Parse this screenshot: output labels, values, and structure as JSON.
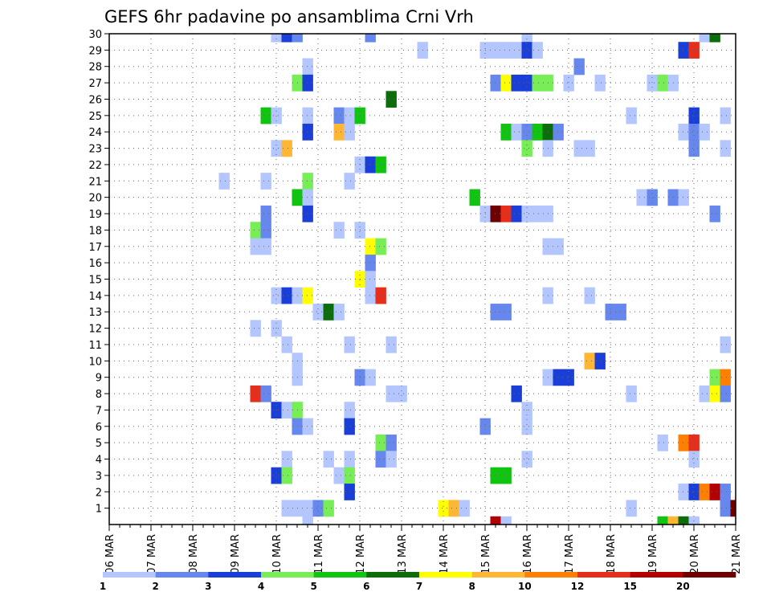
{
  "chart_data": {
    "type": "heatmap",
    "title": "GEFS 6hr padavine po ansamblima Crni Vrh",
    "xlabel": "",
    "ylabel": "",
    "x_range": [
      "06 MAR 00Z",
      "21 MAR 00Z"
    ],
    "y_range": [
      0,
      30
    ],
    "x_tick_labels": [
      "06 MAR",
      "07 MAR",
      "08 MAR",
      "09 MAR",
      "10 MAR",
      "11 MAR",
      "12 MAR",
      "13 MAR",
      "14 MAR",
      "15 MAR",
      "16 MAR",
      "17 MAR",
      "18 MAR",
      "19 MAR",
      "20 MAR",
      "21 MAR"
    ],
    "y_tick_labels": [
      "1",
      "2",
      "3",
      "4",
      "5",
      "6",
      "7",
      "8",
      "9",
      "10",
      "11",
      "12",
      "13",
      "14",
      "15",
      "16",
      "17",
      "18",
      "19",
      "20",
      "21",
      "22",
      "23",
      "24",
      "25",
      "26",
      "27",
      "28",
      "29",
      "30"
    ],
    "grid": true,
    "legend_position": "bottom",
    "colorbar": {
      "levels": [
        1,
        2,
        3,
        4,
        5,
        6,
        7,
        8,
        10,
        12,
        15,
        20
      ],
      "labels": [
        "1",
        "2",
        "3",
        "4",
        "5",
        "6",
        "7",
        "8",
        "10",
        "12",
        "15",
        "20"
      ],
      "colors": [
        "#b3c6ff",
        "#6688ee",
        "#1a3fd9",
        "#77ee55",
        "#11c411",
        "#0b6e0b",
        "#ffff00",
        "#ffb733",
        "#ff8000",
        "#e62e1a",
        "#b30000",
        "#6e0000"
      ]
    },
    "cells": [
      {
        "member": 30,
        "t": "10 MAR 00Z",
        "c": 0
      },
      {
        "member": 30,
        "t": "10 MAR 06Z",
        "c": 2
      },
      {
        "member": 30,
        "t": "10 MAR 12Z",
        "c": 1
      },
      {
        "member": 30,
        "t": "12 MAR 06Z",
        "c": 1
      },
      {
        "member": 30,
        "t": "16 MAR 00Z",
        "c": 0
      },
      {
        "member": 30,
        "t": "20 MAR 06Z",
        "c": 0
      },
      {
        "member": 30,
        "t": "20 MAR 12Z",
        "c": 5
      },
      {
        "member": 29,
        "t": "13 MAR 12Z",
        "c": 0
      },
      {
        "member": 29,
        "t": "15 MAR 00Z",
        "c": 0
      },
      {
        "member": 29,
        "t": "15 MAR 06Z",
        "c": 0
      },
      {
        "member": 29,
        "t": "15 MAR 12Z",
        "c": 0
      },
      {
        "member": 29,
        "t": "15 MAR 18Z",
        "c": 0
      },
      {
        "member": 29,
        "t": "16 MAR 00Z",
        "c": 2
      },
      {
        "member": 29,
        "t": "16 MAR 06Z",
        "c": 0
      },
      {
        "member": 29,
        "t": "19 MAR 18Z",
        "c": 2
      },
      {
        "member": 29,
        "t": "20 MAR 00Z",
        "c": 9
      },
      {
        "member": 28,
        "t": "10 MAR 18Z",
        "c": 0
      },
      {
        "member": 28,
        "t": "17 MAR 06Z",
        "c": 1
      },
      {
        "member": 27,
        "t": "10 MAR 12Z",
        "c": 3
      },
      {
        "member": 27,
        "t": "10 MAR 18Z",
        "c": 2
      },
      {
        "member": 27,
        "t": "15 MAR 06Z",
        "c": 1
      },
      {
        "member": 27,
        "t": "15 MAR 12Z",
        "c": 6
      },
      {
        "member": 27,
        "t": "15 MAR 18Z",
        "c": 2
      },
      {
        "member": 27,
        "t": "16 MAR 00Z",
        "c": 2
      },
      {
        "member": 27,
        "t": "16 MAR 06Z",
        "c": 3
      },
      {
        "member": 27,
        "t": "16 MAR 12Z",
        "c": 3
      },
      {
        "member": 27,
        "t": "17 MAR 00Z",
        "c": 0
      },
      {
        "member": 27,
        "t": "17 MAR 18Z",
        "c": 0
      },
      {
        "member": 27,
        "t": "19 MAR 00Z",
        "c": 0
      },
      {
        "member": 27,
        "t": "19 MAR 06Z",
        "c": 3
      },
      {
        "member": 27,
        "t": "19 MAR 12Z",
        "c": 0
      },
      {
        "member": 26,
        "t": "12 MAR 18Z",
        "c": 5
      },
      {
        "member": 25,
        "t": "09 MAR 18Z",
        "c": 4
      },
      {
        "member": 25,
        "t": "10 MAR 00Z",
        "c": 0
      },
      {
        "member": 25,
        "t": "10 MAR 18Z",
        "c": 0
      },
      {
        "member": 25,
        "t": "11 MAR 12Z",
        "c": 1
      },
      {
        "member": 25,
        "t": "11 MAR 18Z",
        "c": 0
      },
      {
        "member": 25,
        "t": "12 MAR 00Z",
        "c": 4
      },
      {
        "member": 25,
        "t": "18 MAR 12Z",
        "c": 0
      },
      {
        "member": 25,
        "t": "20 MAR 00Z",
        "c": 2
      },
      {
        "member": 25,
        "t": "20 MAR 18Z",
        "c": 0
      },
      {
        "member": 24,
        "t": "10 MAR 18Z",
        "c": 2
      },
      {
        "member": 24,
        "t": "11 MAR 12Z",
        "c": 7
      },
      {
        "member": 24,
        "t": "11 MAR 18Z",
        "c": 0
      },
      {
        "member": 24,
        "t": "15 MAR 12Z",
        "c": 4
      },
      {
        "member": 24,
        "t": "15 MAR 18Z",
        "c": 0
      },
      {
        "member": 24,
        "t": "16 MAR 00Z",
        "c": 1
      },
      {
        "member": 24,
        "t": "16 MAR 06Z",
        "c": 4
      },
      {
        "member": 24,
        "t": "16 MAR 12Z",
        "c": 5
      },
      {
        "member": 24,
        "t": "16 MAR 18Z",
        "c": 1
      },
      {
        "member": 24,
        "t": "19 MAR 18Z",
        "c": 0
      },
      {
        "member": 24,
        "t": "20 MAR 00Z",
        "c": 1
      },
      {
        "member": 24,
        "t": "20 MAR 06Z",
        "c": 0
      },
      {
        "member": 23,
        "t": "10 MAR 00Z",
        "c": 0
      },
      {
        "member": 23,
        "t": "10 MAR 06Z",
        "c": 7
      },
      {
        "member": 23,
        "t": "16 MAR 00Z",
        "c": 3
      },
      {
        "member": 23,
        "t": "16 MAR 12Z",
        "c": 0
      },
      {
        "member": 23,
        "t": "17 MAR 06Z",
        "c": 0
      },
      {
        "member": 23,
        "t": "17 MAR 12Z",
        "c": 0
      },
      {
        "member": 23,
        "t": "20 MAR 00Z",
        "c": 1
      },
      {
        "member": 23,
        "t": "20 MAR 18Z",
        "c": 0
      },
      {
        "member": 22,
        "t": "12 MAR 00Z",
        "c": 0
      },
      {
        "member": 22,
        "t": "12 MAR 06Z",
        "c": 2
      },
      {
        "member": 22,
        "t": "12 MAR 12Z",
        "c": 4
      },
      {
        "member": 21,
        "t": "08 MAR 18Z",
        "c": 0
      },
      {
        "member": 21,
        "t": "09 MAR 18Z",
        "c": 0
      },
      {
        "member": 21,
        "t": "10 MAR 18Z",
        "c": 3
      },
      {
        "member": 21,
        "t": "11 MAR 18Z",
        "c": 0
      },
      {
        "member": 20,
        "t": "10 MAR 12Z",
        "c": 4
      },
      {
        "member": 20,
        "t": "10 MAR 18Z",
        "c": 0
      },
      {
        "member": 20,
        "t": "14 MAR 18Z",
        "c": 4
      },
      {
        "member": 20,
        "t": "18 MAR 18Z",
        "c": 0
      },
      {
        "member": 20,
        "t": "19 MAR 00Z",
        "c": 1
      },
      {
        "member": 20,
        "t": "19 MAR 12Z",
        "c": 1
      },
      {
        "member": 20,
        "t": "19 MAR 18Z",
        "c": 0
      },
      {
        "member": 19,
        "t": "09 MAR 18Z",
        "c": 1
      },
      {
        "member": 19,
        "t": "10 MAR 18Z",
        "c": 2
      },
      {
        "member": 19,
        "t": "15 MAR 00Z",
        "c": 0
      },
      {
        "member": 19,
        "t": "15 MAR 06Z",
        "c": 11
      },
      {
        "member": 19,
        "t": "15 MAR 12Z",
        "c": 9
      },
      {
        "member": 19,
        "t": "15 MAR 18Z",
        "c": 2
      },
      {
        "member": 19,
        "t": "16 MAR 00Z",
        "c": 0
      },
      {
        "member": 19,
        "t": "16 MAR 06Z",
        "c": 0
      },
      {
        "member": 19,
        "t": "16 MAR 12Z",
        "c": 0
      },
      {
        "member": 19,
        "t": "20 MAR 12Z",
        "c": 1
      },
      {
        "member": 18,
        "t": "09 MAR 12Z",
        "c": 3
      },
      {
        "member": 18,
        "t": "09 MAR 18Z",
        "c": 1
      },
      {
        "member": 18,
        "t": "11 MAR 12Z",
        "c": 0
      },
      {
        "member": 18,
        "t": "12 MAR 00Z",
        "c": 0
      },
      {
        "member": 17,
        "t": "09 MAR 12Z",
        "c": 0
      },
      {
        "member": 17,
        "t": "09 MAR 18Z",
        "c": 0
      },
      {
        "member": 17,
        "t": "12 MAR 06Z",
        "c": 6
      },
      {
        "member": 17,
        "t": "12 MAR 12Z",
        "c": 3
      },
      {
        "member": 17,
        "t": "16 MAR 12Z",
        "c": 0
      },
      {
        "member": 17,
        "t": "16 MAR 18Z",
        "c": 0
      },
      {
        "member": 16,
        "t": "12 MAR 06Z",
        "c": 1
      },
      {
        "member": 15,
        "t": "12 MAR 00Z",
        "c": 6
      },
      {
        "member": 15,
        "t": "12 MAR 06Z",
        "c": 0
      },
      {
        "member": 14,
        "t": "10 MAR 00Z",
        "c": 0
      },
      {
        "member": 14,
        "t": "10 MAR 06Z",
        "c": 2
      },
      {
        "member": 14,
        "t": "10 MAR 12Z",
        "c": 0
      },
      {
        "member": 14,
        "t": "10 MAR 18Z",
        "c": 6
      },
      {
        "member": 14,
        "t": "12 MAR 06Z",
        "c": 0
      },
      {
        "member": 14,
        "t": "12 MAR 12Z",
        "c": 9
      },
      {
        "member": 14,
        "t": "16 MAR 12Z",
        "c": 0
      },
      {
        "member": 14,
        "t": "17 MAR 12Z",
        "c": 0
      },
      {
        "member": 13,
        "t": "11 MAR 00Z",
        "c": 0
      },
      {
        "member": 13,
        "t": "11 MAR 06Z",
        "c": 5
      },
      {
        "member": 13,
        "t": "11 MAR 12Z",
        "c": 0
      },
      {
        "member": 13,
        "t": "15 MAR 06Z",
        "c": 1
      },
      {
        "member": 13,
        "t": "15 MAR 12Z",
        "c": 1
      },
      {
        "member": 13,
        "t": "18 MAR 00Z",
        "c": 1
      },
      {
        "member": 13,
        "t": "18 MAR 06Z",
        "c": 1
      },
      {
        "member": 12,
        "t": "09 MAR 12Z",
        "c": 0
      },
      {
        "member": 12,
        "t": "10 MAR 00Z",
        "c": 0
      },
      {
        "member": 11,
        "t": "10 MAR 06Z",
        "c": 0
      },
      {
        "member": 11,
        "t": "11 MAR 18Z",
        "c": 0
      },
      {
        "member": 11,
        "t": "12 MAR 18Z",
        "c": 0
      },
      {
        "member": 11,
        "t": "20 MAR 18Z",
        "c": 0
      },
      {
        "member": 10,
        "t": "10 MAR 12Z",
        "c": 0
      },
      {
        "member": 10,
        "t": "17 MAR 12Z",
        "c": 7
      },
      {
        "member": 10,
        "t": "17 MAR 18Z",
        "c": 2
      },
      {
        "member": 9,
        "t": "10 MAR 12Z",
        "c": 0
      },
      {
        "member": 9,
        "t": "12 MAR 00Z",
        "c": 1
      },
      {
        "member": 9,
        "t": "12 MAR 06Z",
        "c": 0
      },
      {
        "member": 9,
        "t": "16 MAR 12Z",
        "c": 0
      },
      {
        "member": 9,
        "t": "16 MAR 18Z",
        "c": 2
      },
      {
        "member": 9,
        "t": "17 MAR 00Z",
        "c": 2
      },
      {
        "member": 9,
        "t": "20 MAR 12Z",
        "c": 3
      },
      {
        "member": 9,
        "t": "20 MAR 18Z",
        "c": 8
      },
      {
        "member": 8,
        "t": "09 MAR 12Z",
        "c": 9
      },
      {
        "member": 8,
        "t": "09 MAR 18Z",
        "c": 1
      },
      {
        "member": 8,
        "t": "12 MAR 18Z",
        "c": 0
      },
      {
        "member": 8,
        "t": "13 MAR 00Z",
        "c": 0
      },
      {
        "member": 8,
        "t": "15 MAR 18Z",
        "c": 2
      },
      {
        "member": 8,
        "t": "18 MAR 12Z",
        "c": 0
      },
      {
        "member": 8,
        "t": "20 MAR 06Z",
        "c": 0
      },
      {
        "member": 8,
        "t": "20 MAR 12Z",
        "c": 6
      },
      {
        "member": 8,
        "t": "20 MAR 18Z",
        "c": 1
      },
      {
        "member": 7,
        "t": "10 MAR 00Z",
        "c": 2
      },
      {
        "member": 7,
        "t": "10 MAR 06Z",
        "c": 0
      },
      {
        "member": 7,
        "t": "10 MAR 12Z",
        "c": 3
      },
      {
        "member": 7,
        "t": "11 MAR 18Z",
        "c": 0
      },
      {
        "member": 7,
        "t": "16 MAR 00Z",
        "c": 0
      },
      {
        "member": 6,
        "t": "10 MAR 12Z",
        "c": 1
      },
      {
        "member": 6,
        "t": "10 MAR 18Z",
        "c": 0
      },
      {
        "member": 6,
        "t": "11 MAR 18Z",
        "c": 2
      },
      {
        "member": 6,
        "t": "15 MAR 00Z",
        "c": 1
      },
      {
        "member": 6,
        "t": "16 MAR 00Z",
        "c": 0
      },
      {
        "member": 5,
        "t": "12 MAR 12Z",
        "c": 3
      },
      {
        "member": 5,
        "t": "12 MAR 18Z",
        "c": 1
      },
      {
        "member": 5,
        "t": "19 MAR 06Z",
        "c": 0
      },
      {
        "member": 5,
        "t": "19 MAR 18Z",
        "c": 8
      },
      {
        "member": 5,
        "t": "20 MAR 00Z",
        "c": 9
      },
      {
        "member": 4,
        "t": "10 MAR 06Z",
        "c": 0
      },
      {
        "member": 4,
        "t": "11 MAR 06Z",
        "c": 0
      },
      {
        "member": 4,
        "t": "11 MAR 18Z",
        "c": 0
      },
      {
        "member": 4,
        "t": "12 MAR 12Z",
        "c": 1
      },
      {
        "member": 4,
        "t": "12 MAR 18Z",
        "c": 0
      },
      {
        "member": 4,
        "t": "16 MAR 00Z",
        "c": 0
      },
      {
        "member": 4,
        "t": "20 MAR 00Z",
        "c": 0
      },
      {
        "member": 3,
        "t": "10 MAR 00Z",
        "c": 2
      },
      {
        "member": 3,
        "t": "10 MAR 06Z",
        "c": 3
      },
      {
        "member": 3,
        "t": "11 MAR 12Z",
        "c": 0
      },
      {
        "member": 3,
        "t": "11 MAR 18Z",
        "c": 3
      },
      {
        "member": 3,
        "t": "15 MAR 06Z",
        "c": 4
      },
      {
        "member": 3,
        "t": "15 MAR 12Z",
        "c": 4
      },
      {
        "member": 2,
        "t": "11 MAR 18Z",
        "c": 2
      },
      {
        "member": 2,
        "t": "19 MAR 18Z",
        "c": 0
      },
      {
        "member": 2,
        "t": "20 MAR 00Z",
        "c": 2
      },
      {
        "member": 2,
        "t": "20 MAR 06Z",
        "c": 8
      },
      {
        "member": 2,
        "t": "20 MAR 12Z",
        "c": 10
      },
      {
        "member": 2,
        "t": "20 MAR 18Z",
        "c": 1
      },
      {
        "member": 1,
        "t": "10 MAR 06Z",
        "c": 0
      },
      {
        "member": 1,
        "t": "10 MAR 12Z",
        "c": 0
      },
      {
        "member": 1,
        "t": "10 MAR 18Z",
        "c": 0
      },
      {
        "member": 1,
        "t": "11 MAR 00Z",
        "c": 1
      },
      {
        "member": 1,
        "t": "11 MAR 06Z",
        "c": 3
      },
      {
        "member": 1,
        "t": "14 MAR 00Z",
        "c": 6
      },
      {
        "member": 1,
        "t": "14 MAR 06Z",
        "c": 7
      },
      {
        "member": 1,
        "t": "14 MAR 12Z",
        "c": 0
      },
      {
        "member": 1,
        "t": "18 MAR 12Z",
        "c": 0
      },
      {
        "member": 1,
        "t": "20 MAR 18Z",
        "c": 1
      },
      {
        "member": 1,
        "t": "21 MAR 00Z",
        "c": 11
      },
      {
        "member": 0,
        "t": "10 MAR 18Z",
        "c": 0
      },
      {
        "member": 0,
        "t": "15 MAR 06Z",
        "c": 10
      },
      {
        "member": 0,
        "t": "15 MAR 12Z",
        "c": 0
      },
      {
        "member": 0,
        "t": "19 MAR 06Z",
        "c": 4
      },
      {
        "member": 0,
        "t": "19 MAR 12Z",
        "c": 7
      },
      {
        "member": 0,
        "t": "19 MAR 18Z",
        "c": 5
      },
      {
        "member": 0,
        "t": "20 MAR 00Z",
        "c": 0
      }
    ]
  }
}
